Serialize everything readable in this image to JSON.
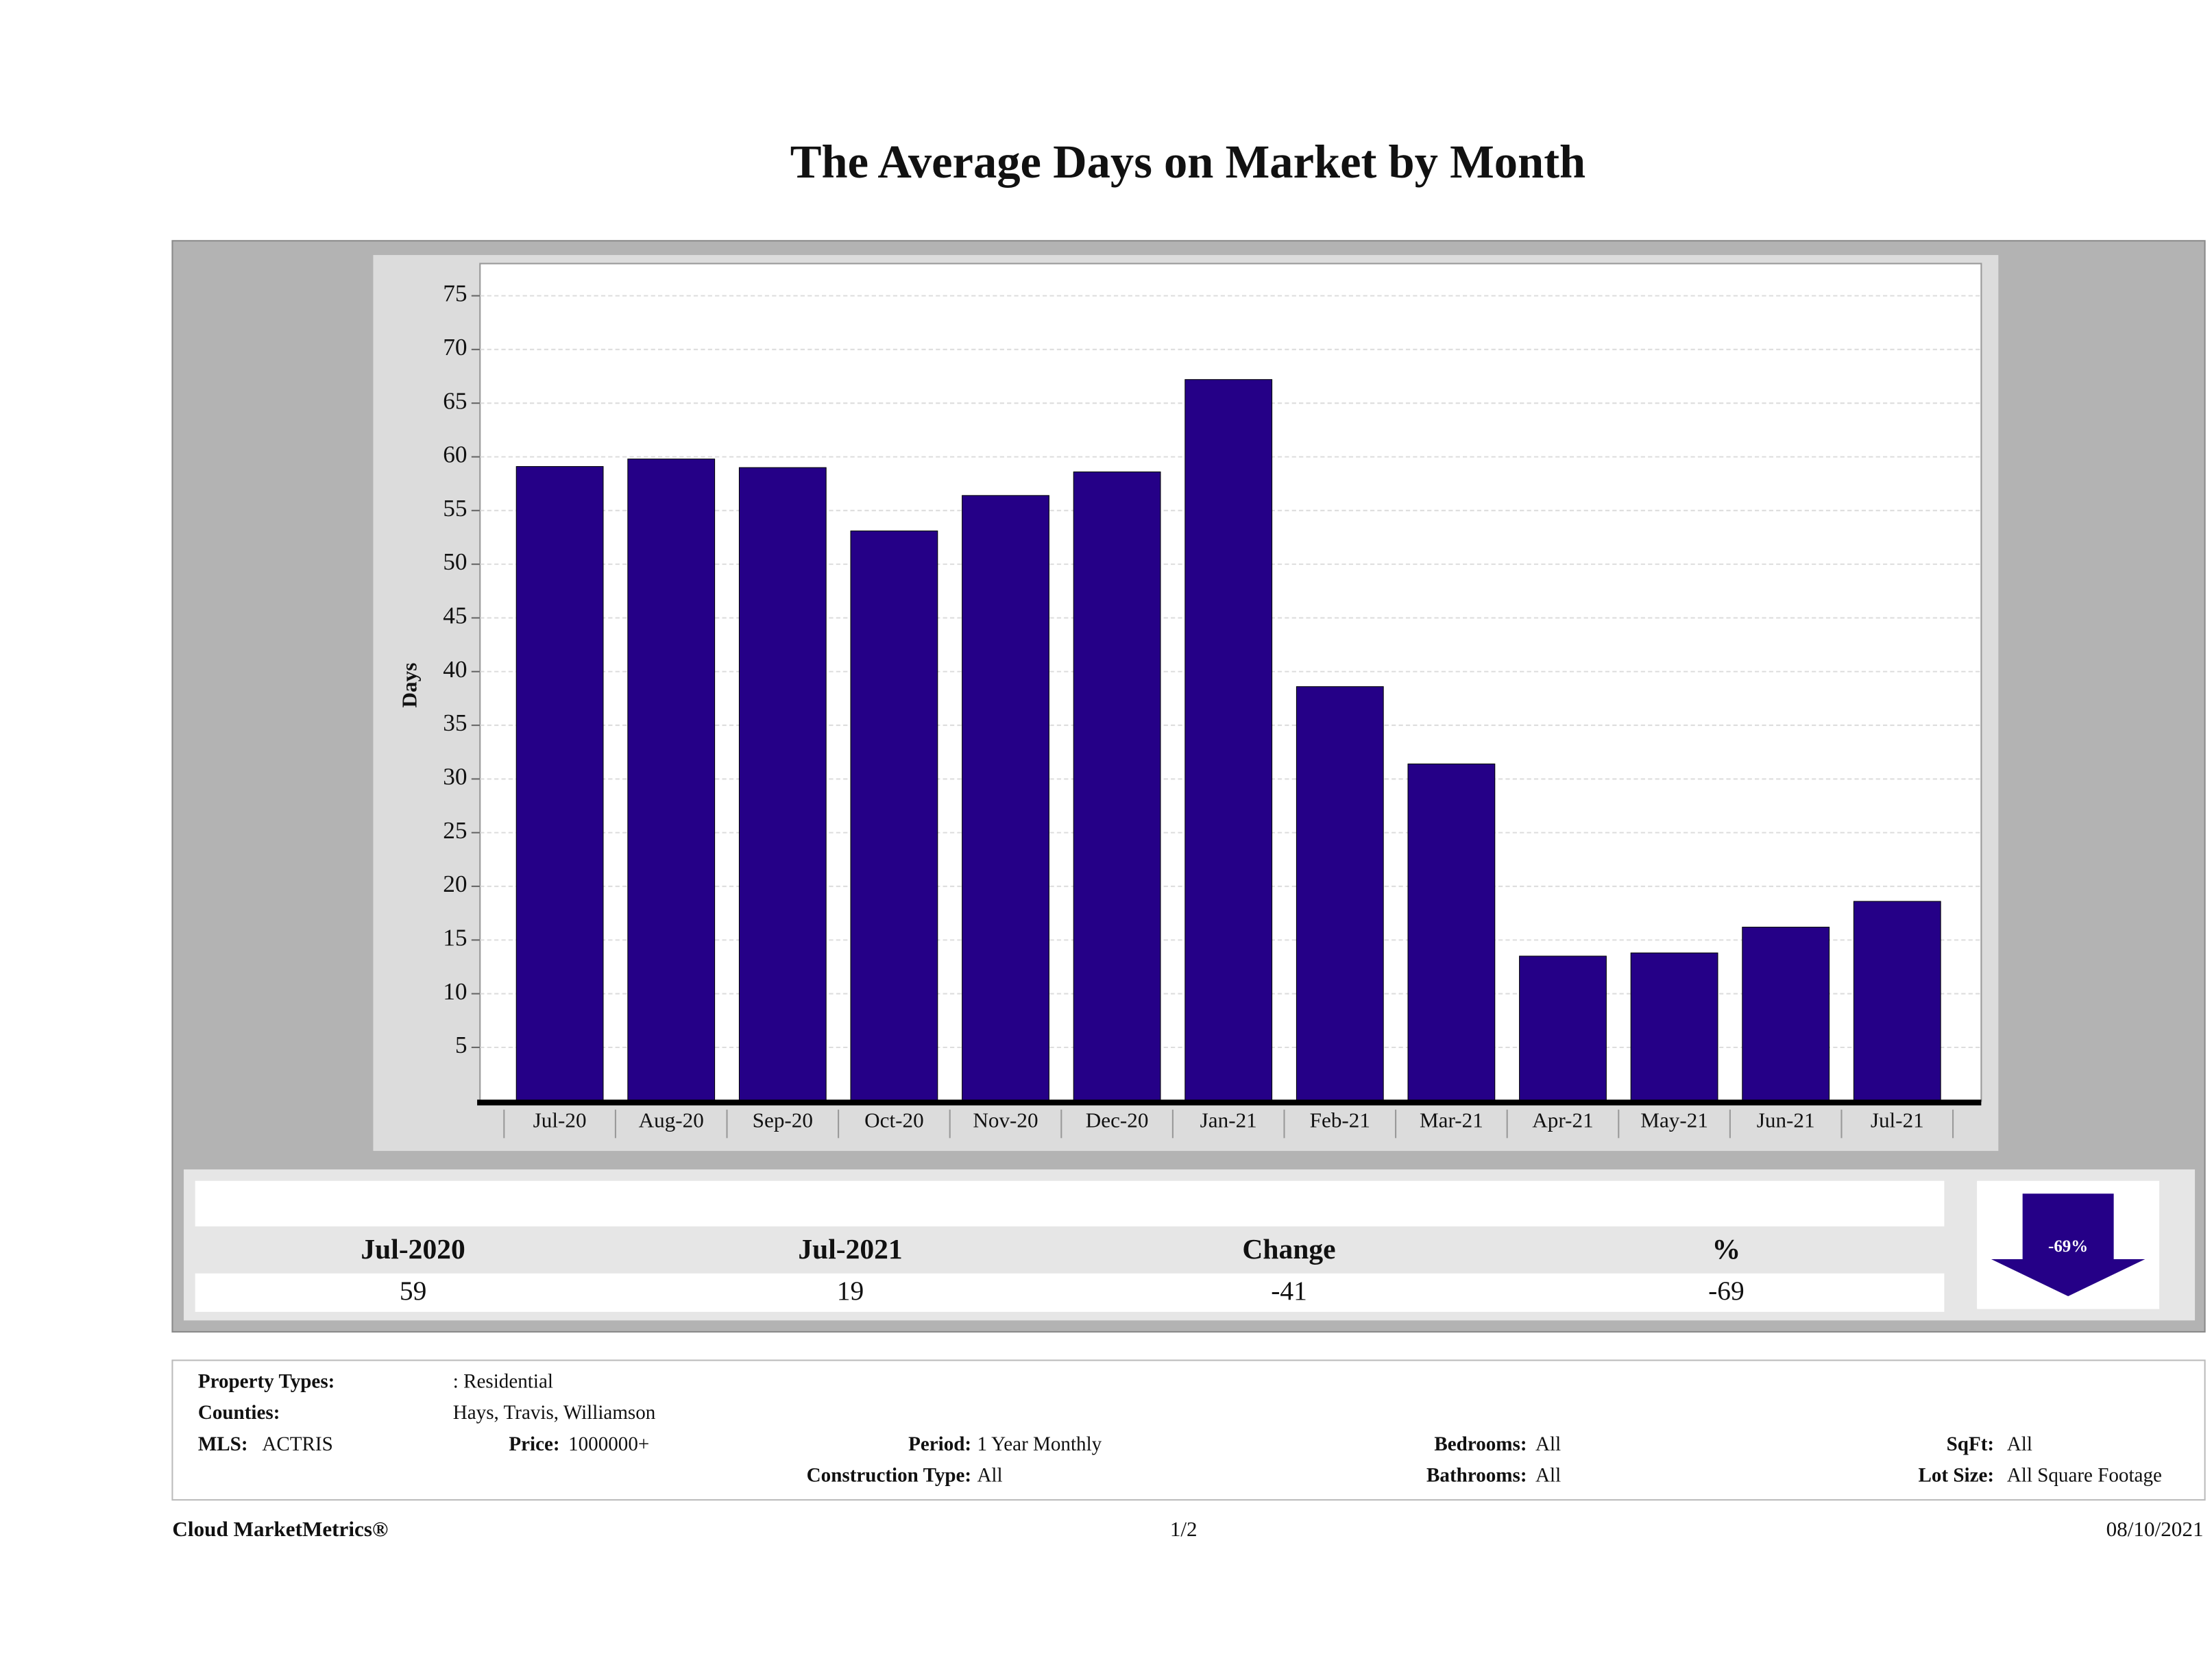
{
  "chart_data": {
    "type": "bar",
    "title": "The Average Days on Market by Month",
    "y_label": "Days",
    "categories": [
      "Jul-20",
      "Aug-20",
      "Sep-20",
      "Oct-20",
      "Nov-20",
      "Dec-20",
      "Jan-21",
      "Feb-21",
      "Mar-21",
      "Apr-21",
      "May-21",
      "Jun-21",
      "Jul-21"
    ],
    "values": [
      59.1,
      59.8,
      59.0,
      53.1,
      56.4,
      58.6,
      67.2,
      38.6,
      31.4,
      13.5,
      13.8,
      16.2,
      18.6
    ],
    "color": "#250087",
    "ylim": [
      0,
      78
    ],
    "yticks": [
      5,
      10,
      15,
      20,
      25,
      30,
      35,
      40,
      45,
      50,
      55,
      60,
      65,
      70,
      75
    ],
    "grid": true
  },
  "summary": {
    "headers": [
      "Jul-2020",
      "Jul-2021",
      "Change",
      "%"
    ],
    "values": [
      59,
      19,
      -41,
      -69
    ],
    "arrow_label": "-69%"
  },
  "filters": [
    {
      "label": "Property Types:",
      "value": ": Residential"
    },
    {
      "label": "Counties:",
      "value": "Hays, Travis, Williamson"
    },
    {
      "label": "MLS:",
      "value": "ACTRIS"
    },
    {
      "label": "Price:",
      "value": "1000000+"
    },
    {
      "label": "Period:",
      "value": "1 Year Monthly"
    },
    {
      "label": "Construction Type:",
      "value": "All"
    },
    {
      "label": "Bedrooms:",
      "value": "All"
    },
    {
      "label": "Bathrooms:",
      "value": "All"
    },
    {
      "label": "SqFt:",
      "value": "All"
    },
    {
      "label": "Lot Size:",
      "value": "All Square Footage"
    }
  ],
  "footer": {
    "brand": "Cloud MarketMetrics®",
    "page": "1/2",
    "date": "08/10/2021"
  }
}
